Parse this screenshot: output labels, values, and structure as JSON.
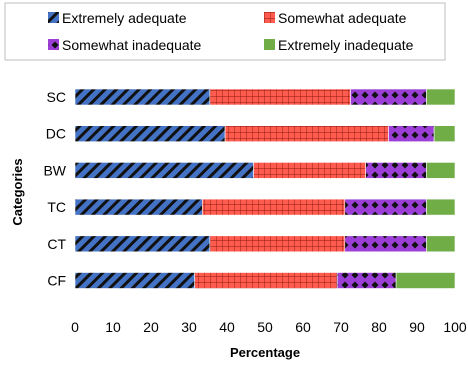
{
  "chart_data": {
    "type": "bar",
    "orientation": "horizontal",
    "stacked": true,
    "categories": [
      "SC",
      "DC",
      "BW",
      "TC",
      "CT",
      "CF"
    ],
    "series": [
      {
        "name": "Extremely adequate",
        "values": [
          35.5,
          39.5,
          47,
          33.5,
          35.5,
          31.5
        ],
        "color": "#4472C4",
        "pattern": "diagonal-stripes"
      },
      {
        "name": "Somewhat adequate",
        "values": [
          37,
          43,
          29.5,
          37.5,
          35.5,
          37.5
        ],
        "color": "#FF5B4E",
        "pattern": "grid"
      },
      {
        "name": "Somewhat inadequate",
        "values": [
          20,
          12,
          16,
          21.5,
          21.5,
          15.5
        ],
        "color": "#9B3FD6",
        "pattern": "diamonds"
      },
      {
        "name": "Extremely inadequate",
        "values": [
          7.5,
          5.5,
          7.5,
          7.5,
          7.5,
          15.5
        ],
        "color": "#70AD47",
        "pattern": "solid"
      }
    ],
    "xlabel": "Percentage",
    "ylabel": "Categories",
    "xlim": [
      0,
      100
    ],
    "xticks": [
      0,
      10,
      20,
      30,
      40,
      50,
      60,
      70,
      80,
      90,
      100
    ],
    "grid": false,
    "legend_position": "top"
  }
}
